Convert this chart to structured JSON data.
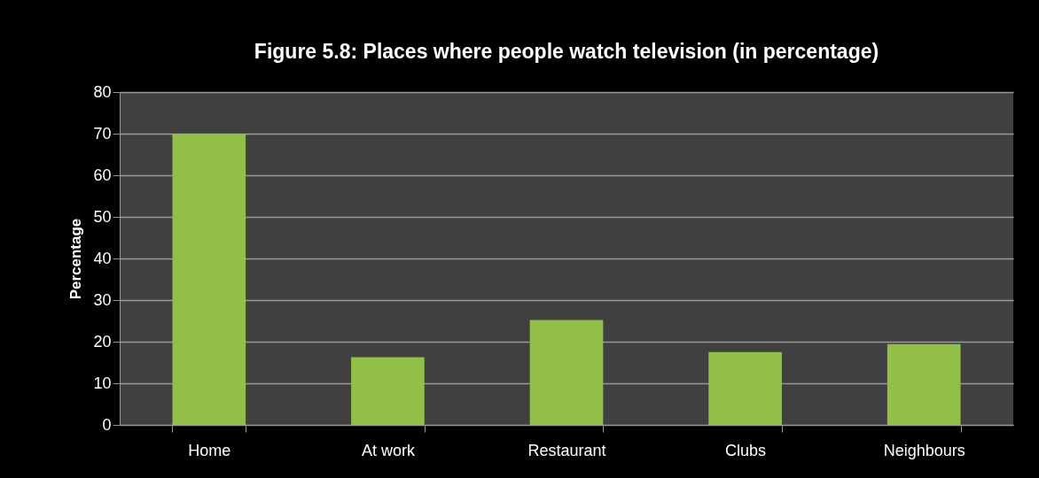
{
  "chart_data": {
    "type": "bar",
    "title": "Figure 5.8: Places where people watch television (in percentage)",
    "ylabel": "Percentage",
    "categories": [
      "Home",
      "At work",
      "Restaurant",
      "Clubs",
      "Neighbours"
    ],
    "values": [
      70,
      16.3,
      25.2,
      17.5,
      19.4
    ],
    "color": "#92c047",
    "ylim": [
      0,
      80
    ],
    "yticks": [
      0,
      10,
      20,
      30,
      40,
      50,
      60,
      70,
      80
    ],
    "grid": "y"
  }
}
